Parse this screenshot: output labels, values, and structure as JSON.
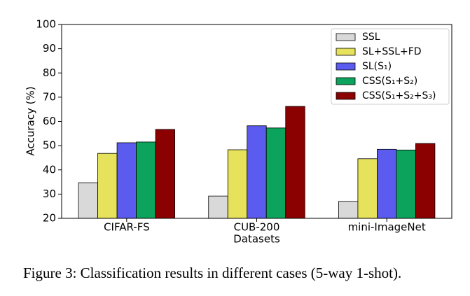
{
  "chart_data": {
    "type": "bar",
    "caption": "Figure 3: Classification results in different cases (5-way 1-shot).",
    "xlabel": "Datasets",
    "ylabel": "Accuracy (%)",
    "categories": [
      "CIFAR-FS",
      "CUB-200",
      "mini-ImageNet"
    ],
    "series": [
      {
        "name": "SSL",
        "color": "#d9d9d9",
        "values": [
          34.7,
          29.2,
          27.0
        ]
      },
      {
        "name": "SL+SSL+FD",
        "color": "#e6e25c",
        "values": [
          46.8,
          48.3,
          44.6
        ]
      },
      {
        "name": "SL(S₁)",
        "color": "#5b5bef",
        "values": [
          51.2,
          58.2,
          48.5
        ]
      },
      {
        "name": "CSS(S₁+S₂)",
        "color": "#0ca45c",
        "values": [
          51.5,
          57.3,
          48.2
        ]
      },
      {
        "name": "CSS(S₁+S₂+S₃)",
        "color": "#8b0000",
        "values": [
          56.7,
          66.2,
          50.9
        ]
      }
    ],
    "ylim": [
      20,
      100
    ],
    "yticks": [
      20,
      30,
      40,
      50,
      60,
      70,
      80,
      90,
      100
    ],
    "legend": "upper right"
  }
}
